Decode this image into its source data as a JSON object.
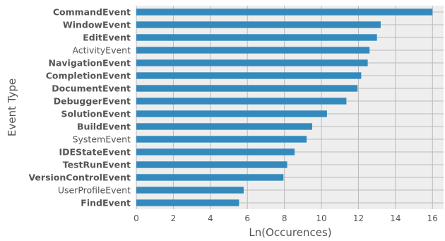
{
  "chart_data": {
    "type": "bar",
    "orientation": "horizontal",
    "xlabel": "Ln(Occurences)",
    "ylabel": "Event Type",
    "xlim": [
      0,
      16.6
    ],
    "xticks": [
      0,
      2,
      4,
      6,
      8,
      10,
      12,
      14,
      16
    ],
    "grid": true,
    "bar_color": "#348ABD",
    "categories": [
      {
        "label": "CommandEvent",
        "value": 16.0,
        "bold": true
      },
      {
        "label": "WindowEvent",
        "value": 13.2,
        "bold": true
      },
      {
        "label": "EditEvent",
        "value": 13.0,
        "bold": true
      },
      {
        "label": "ActivityEvent",
        "value": 12.6,
        "bold": false
      },
      {
        "label": "NavigationEvent",
        "value": 12.5,
        "bold": true
      },
      {
        "label": "CompletionEvent",
        "value": 12.15,
        "bold": true
      },
      {
        "label": "DocumentEvent",
        "value": 11.95,
        "bold": true
      },
      {
        "label": "DebuggerEvent",
        "value": 11.35,
        "bold": true
      },
      {
        "label": "SolutionEvent",
        "value": 10.3,
        "bold": true
      },
      {
        "label": "BuildEvent",
        "value": 9.5,
        "bold": true
      },
      {
        "label": "SystemEvent",
        "value": 9.2,
        "bold": false
      },
      {
        "label": "IDEStateEvent",
        "value": 8.55,
        "bold": true
      },
      {
        "label": "TestRunEvent",
        "value": 8.15,
        "bold": true
      },
      {
        "label": "VersionControlEvent",
        "value": 7.95,
        "bold": true
      },
      {
        "label": "UserProfileEvent",
        "value": 5.8,
        "bold": false
      },
      {
        "label": "FindEvent",
        "value": 5.55,
        "bold": true
      }
    ]
  }
}
